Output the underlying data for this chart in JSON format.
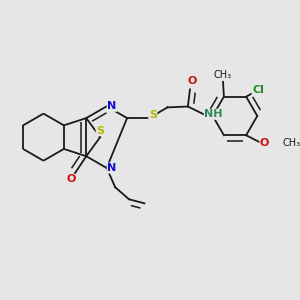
{
  "bg_color": "#e6e6e6",
  "bond_color": "#1a1a1a",
  "bond_lw": 1.3,
  "fig_size": [
    3.0,
    3.0
  ],
  "dpi": 100,
  "S1_color": "#b8b800",
  "S2_color": "#b8b800",
  "N_color": "#1010cc",
  "O_color": "#cc1010",
  "NH_color": "#2e8b57",
  "Cl_color": "#228b22",
  "C_color": "#1a1a1a",
  "xlim": [
    0.0,
    6.2
  ],
  "ylim": [
    0.0,
    6.2
  ]
}
